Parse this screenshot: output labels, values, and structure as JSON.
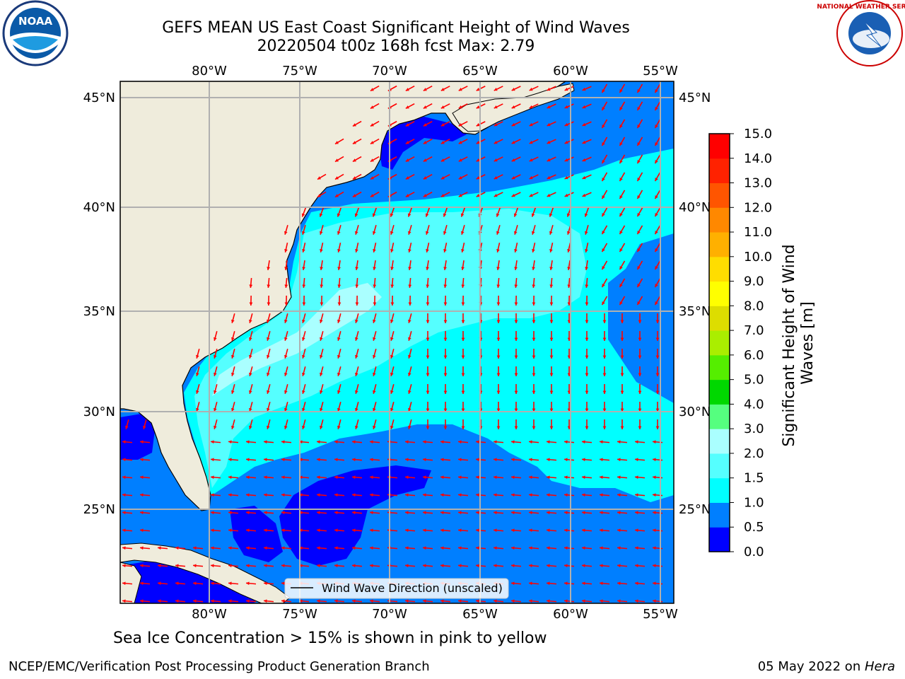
{
  "title_line1": "GEFS MEAN US East Coast Significant Height of Wind Waves",
  "title_line2": "20220504 t00z 168h fcst   Max: 2.79",
  "logos": {
    "left": "noaa-logo",
    "right": "nws-logo",
    "left_text": "NOAA",
    "right_text": "NATIONAL WEATHER SERVICE"
  },
  "legend_label": "Wind Wave Direction (unscaled)",
  "sea_ice_note": "Sea Ice Concentration > 15% is shown in pink to yellow",
  "footer_left": "NCEP/EMC/Verification Post Processing Product Generation Branch",
  "footer_right_date": "05 May 2022 on ",
  "footer_right_host": "Hera",
  "map": {
    "lon_ticks": [
      "80°W",
      "75°W",
      "70°W",
      "65°W",
      "60°W",
      "55°W"
    ],
    "lat_ticks": [
      "45°N",
      "40°N",
      "35°N",
      "30°N",
      "25°N"
    ],
    "lon_range": [
      -85,
      -54.3
    ],
    "lat_range": [
      20.6,
      46
    ],
    "land_color": "#efecdc",
    "arrow_color": "#ff0000"
  },
  "colorbar": {
    "label": "Significant Height of Wind Waves [m]",
    "ticks": [
      "15.0",
      "14.0",
      "13.0",
      "12.0",
      "11.0",
      "10.0",
      "9.0",
      "8.0",
      "7.0",
      "6.0",
      "5.0",
      "4.0",
      "3.0",
      "2.0",
      "1.5",
      "1.0",
      "0.5",
      "0.0"
    ],
    "colors": [
      "#0000ff",
      "#007fff",
      "#00ffff",
      "#55ffff",
      "#aaffff",
      "#55ff7f",
      "#00d800",
      "#55ee00",
      "#aaee00",
      "#dddd00",
      "#ffff00",
      "#ffdd00",
      "#ffb000",
      "#ff8800",
      "#ff5500",
      "#ff2200",
      "#ff0000"
    ]
  }
}
